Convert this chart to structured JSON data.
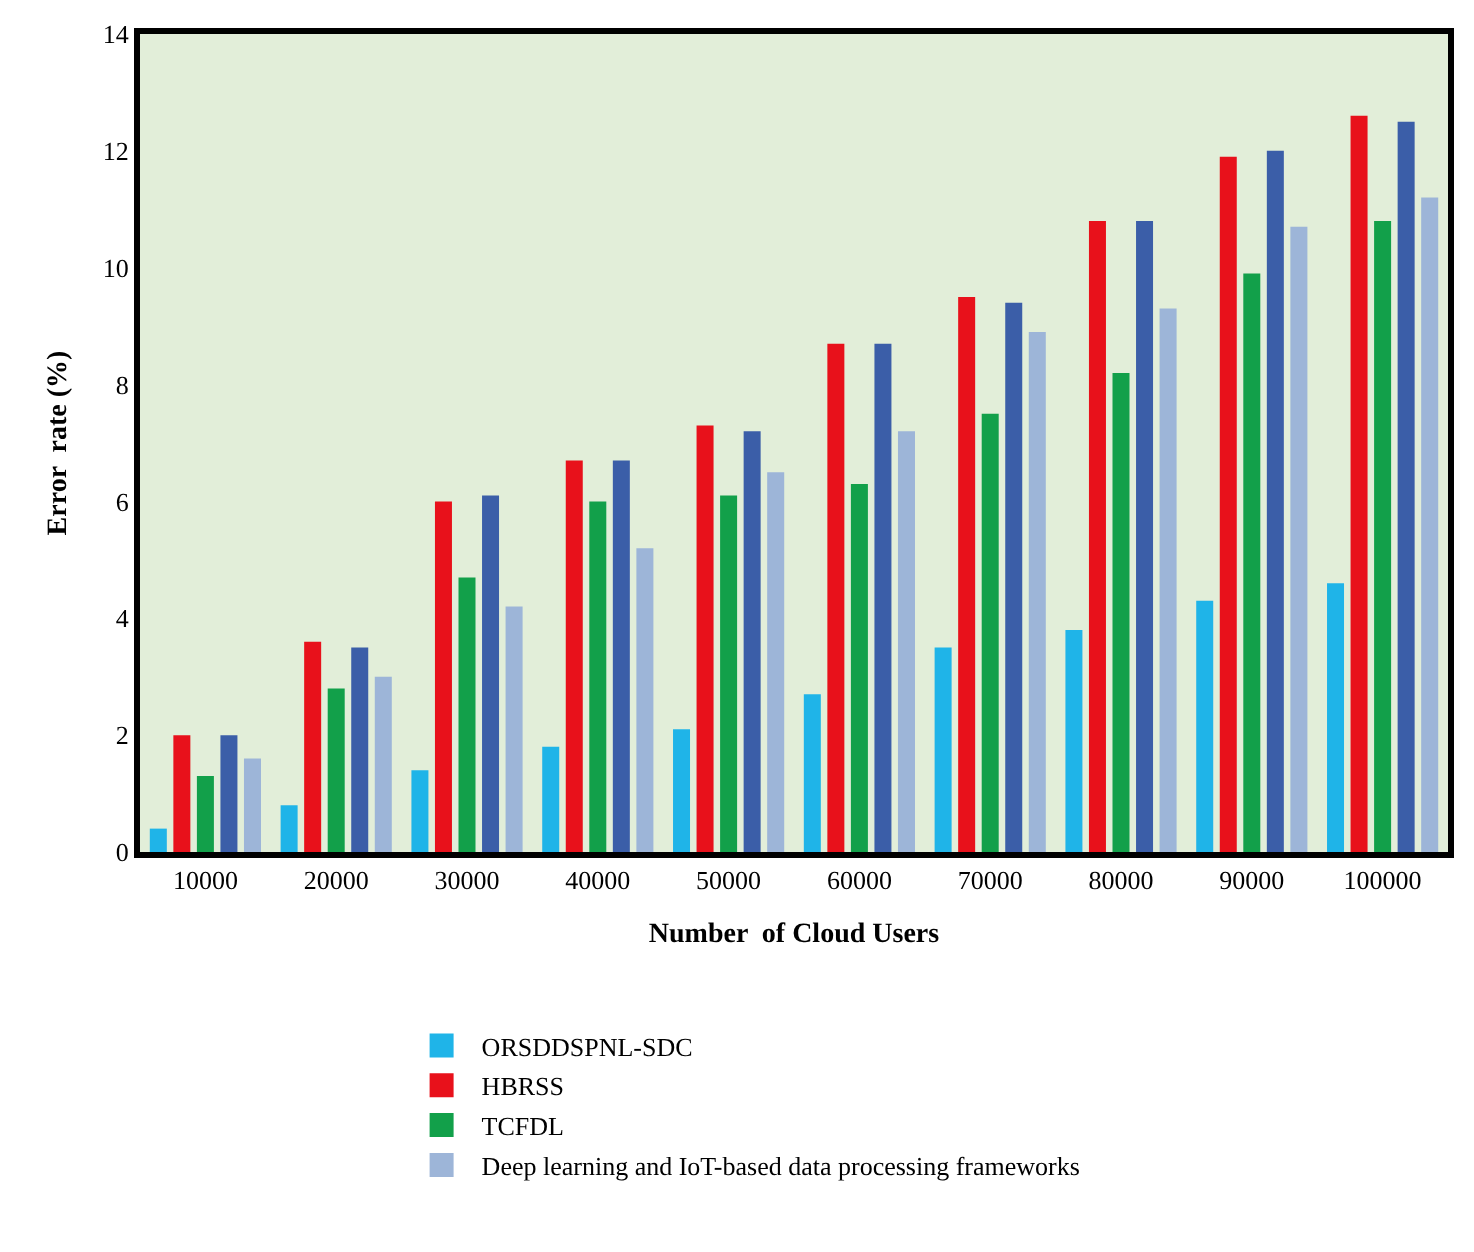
{
  "chart_data": {
    "type": "bar",
    "xlabel": "Number  of Cloud Users",
    "ylabel": "Error  rate (%)",
    "categories": [
      "10000",
      "20000",
      "30000",
      "40000",
      "50000",
      "60000",
      "70000",
      "80000",
      "90000",
      "100000"
    ],
    "series": [
      {
        "name": "ORSDDSPNL-SDC",
        "color": "#1fb4e8",
        "values": [
          0.4,
          0.8,
          1.4,
          1.8,
          2.1,
          2.7,
          3.5,
          3.8,
          4.3,
          4.6
        ]
      },
      {
        "name": "HBRSS",
        "color": "#e8111b",
        "values": [
          2.0,
          3.6,
          6.0,
          6.7,
          7.3,
          8.7,
          9.5,
          10.8,
          11.9,
          12.6
        ]
      },
      {
        "name": "TCFDL",
        "color": "#12a04a",
        "values": [
          1.3,
          2.8,
          4.7,
          6.0,
          6.1,
          6.3,
          7.5,
          8.2,
          9.9,
          10.8
        ]
      },
      {
        "color": "#3b5ea8",
        "values": [
          2.0,
          3.5,
          6.1,
          6.7,
          7.2,
          8.7,
          9.4,
          10.8,
          12.0,
          12.5
        ]
      },
      {
        "name": "Deep learning and IoT-based data processing frameworks",
        "color": "#9db5d8",
        "values": [
          1.6,
          3.0,
          4.2,
          5.2,
          6.5,
          7.2,
          8.9,
          9.3,
          10.7,
          11.2
        ]
      }
    ],
    "ylim": [
      0,
      14
    ],
    "yticks": [
      0,
      2,
      4,
      6,
      8,
      10,
      12,
      14
    ],
    "grid": false,
    "legend": "bottom"
  }
}
